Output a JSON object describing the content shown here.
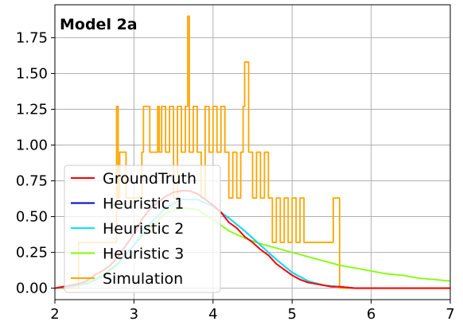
{
  "chart_data": {
    "type": "line",
    "title": "Model 2a",
    "xlabel": "",
    "ylabel": "",
    "xlim": [
      2,
      7
    ],
    "ylim": [
      -0.08,
      1.98
    ],
    "xticks": [
      "2",
      "3",
      "4",
      "5",
      "6",
      "7"
    ],
    "yticks": [
      "0.00",
      "0.25",
      "0.50",
      "0.75",
      "1.00",
      "1.25",
      "1.50",
      "1.75"
    ],
    "grid": true,
    "legend_position": "lower-left",
    "series": [
      {
        "name": "GroundTruth",
        "color": "#ff0000",
        "x": [
          2.0,
          2.1,
          2.2,
          2.3,
          2.4,
          2.5,
          2.6,
          2.7,
          2.8,
          2.9,
          3.0,
          3.1,
          3.2,
          3.3,
          3.4,
          3.5,
          3.6,
          3.7,
          3.8,
          3.9,
          4.0,
          4.1,
          4.2,
          4.3,
          4.4,
          4.5,
          4.6,
          4.7,
          4.8,
          4.9,
          5.0,
          5.1,
          5.2,
          5.3,
          5.4,
          5.5,
          5.6,
          5.8,
          6.0,
          6.5,
          7.0
        ],
        "values": [
          0.0,
          0.01,
          0.02,
          0.03,
          0.05,
          0.09,
          0.12,
          0.16,
          0.22,
          0.3,
          0.38,
          0.48,
          0.55,
          0.6,
          0.64,
          0.67,
          0.68,
          0.68,
          0.66,
          0.62,
          0.58,
          0.53,
          0.46,
          0.42,
          0.36,
          0.32,
          0.27,
          0.23,
          0.17,
          0.13,
          0.09,
          0.06,
          0.04,
          0.03,
          0.02,
          0.01,
          0.01,
          0.0,
          0.0,
          0.0,
          0.0
        ]
      },
      {
        "name": "Heuristic 1",
        "color": "#0000cc",
        "x": [
          2.0,
          2.2,
          2.4,
          2.6,
          2.8,
          3.0,
          3.2,
          3.4,
          3.6,
          3.8,
          4.0,
          4.2,
          4.4,
          4.6,
          4.8,
          5.0,
          5.2,
          5.4,
          5.6,
          5.8,
          6.0,
          6.5,
          7.0
        ],
        "values": [
          0.0,
          0.01,
          0.03,
          0.08,
          0.17,
          0.3,
          0.45,
          0.56,
          0.62,
          0.62,
          0.57,
          0.49,
          0.4,
          0.3,
          0.2,
          0.11,
          0.05,
          0.02,
          0.01,
          0.0,
          0.0,
          0.0,
          0.0
        ]
      },
      {
        "name": "Heuristic 2",
        "color": "#00e5ff",
        "x": [
          2.0,
          2.2,
          2.4,
          2.6,
          2.8,
          3.0,
          3.2,
          3.4,
          3.6,
          3.8,
          4.0,
          4.2,
          4.4,
          4.6,
          4.8,
          5.0,
          5.2,
          5.4,
          5.6,
          5.8,
          6.0,
          6.5,
          7.0
        ],
        "values": [
          0.0,
          0.01,
          0.03,
          0.08,
          0.17,
          0.3,
          0.45,
          0.56,
          0.62,
          0.62,
          0.57,
          0.49,
          0.4,
          0.3,
          0.2,
          0.11,
          0.05,
          0.02,
          0.01,
          0.0,
          0.0,
          0.0,
          0.0
        ]
      },
      {
        "name": "Heuristic 3",
        "color": "#7fff00",
        "x": [
          2.0,
          2.2,
          2.4,
          2.6,
          2.8,
          3.0,
          3.2,
          3.4,
          3.6,
          3.8,
          4.0,
          4.2,
          4.4,
          4.6,
          4.8,
          5.0,
          5.2,
          5.4,
          5.6,
          5.8,
          6.0,
          6.2,
          6.4,
          6.6,
          6.8,
          7.0
        ],
        "values": [
          0.0,
          0.01,
          0.04,
          0.09,
          0.18,
          0.3,
          0.42,
          0.52,
          0.56,
          0.55,
          0.48,
          0.4,
          0.35,
          0.31,
          0.28,
          0.25,
          0.22,
          0.19,
          0.16,
          0.14,
          0.12,
          0.1,
          0.09,
          0.07,
          0.06,
          0.05
        ]
      },
      {
        "name": "Simulation",
        "color": "#ffa500",
        "x": [
          2.0,
          2.3,
          2.5,
          2.7,
          2.78,
          2.8,
          2.82,
          2.9,
          3.0,
          3.1,
          3.12,
          3.2,
          3.3,
          3.32,
          3.35,
          3.4,
          3.45,
          3.5,
          3.55,
          3.6,
          3.65,
          3.68,
          3.7,
          3.75,
          3.8,
          3.85,
          3.9,
          3.95,
          4.0,
          4.05,
          4.1,
          4.15,
          4.2,
          4.25,
          4.3,
          4.35,
          4.38,
          4.4,
          4.45,
          4.5,
          4.55,
          4.6,
          4.65,
          4.7,
          4.75,
          4.8,
          4.85,
          4.9,
          4.95,
          5.0,
          5.05,
          5.1,
          5.15,
          5.2,
          5.3,
          5.4,
          5.5,
          5.52,
          5.6,
          6.0,
          7.0
        ],
        "values": [
          0.0,
          0.32,
          0.32,
          0.32,
          1.27,
          0.63,
          0.95,
          0.63,
          0.63,
          0.95,
          1.27,
          0.95,
          1.27,
          0.95,
          1.27,
          0.95,
          1.27,
          0.63,
          1.27,
          0.95,
          1.27,
          1.9,
          0.95,
          1.27,
          0.95,
          0.63,
          1.27,
          0.95,
          1.27,
          0.95,
          1.27,
          0.95,
          0.63,
          0.95,
          0.63,
          0.95,
          1.27,
          1.58,
          0.95,
          0.63,
          0.95,
          0.63,
          0.95,
          0.63,
          0.32,
          0.63,
          0.32,
          0.63,
          0.32,
          0.63,
          0.32,
          0.63,
          0.32,
          0.32,
          0.32,
          0.32,
          0.32,
          0.63,
          0.0,
          0.0,
          0.0
        ]
      }
    ]
  }
}
